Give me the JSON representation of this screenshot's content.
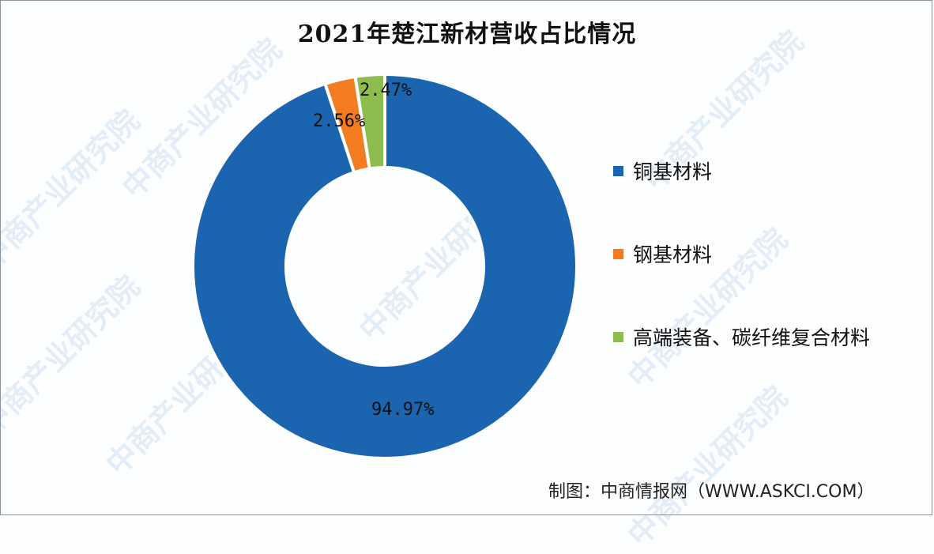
{
  "title": "2021年楚江新材营收占比情况",
  "source": "制图：中商情报网（WWW.ASKCI.COM）",
  "watermark": "中商产业研究院",
  "legend": [
    {
      "label": "铜基材料",
      "color": "#1b64b0"
    },
    {
      "label": "钢基材料",
      "color": "#f47c20"
    },
    {
      "label": "高端装备、碳纤维复合材料",
      "color": "#8fbc4f"
    }
  ],
  "data_labels": [
    "94.97%",
    "2.56%",
    "2.47%"
  ],
  "chart_data": {
    "type": "pie",
    "variant": "donut",
    "title": "2021年楚江新材营收占比情况",
    "categories": [
      "铜基材料",
      "钢基材料",
      "高端装备、碳纤维复合材料"
    ],
    "values": [
      94.97,
      2.56,
      2.47
    ],
    "unit": "%",
    "colors": [
      "#1b64b0",
      "#f47c20",
      "#8fbc4f"
    ],
    "legend_position": "right",
    "start_angle": "12 o'clock, clockwise",
    "source": "制图：中商情报网（WWW.ASKCI.COM）"
  }
}
